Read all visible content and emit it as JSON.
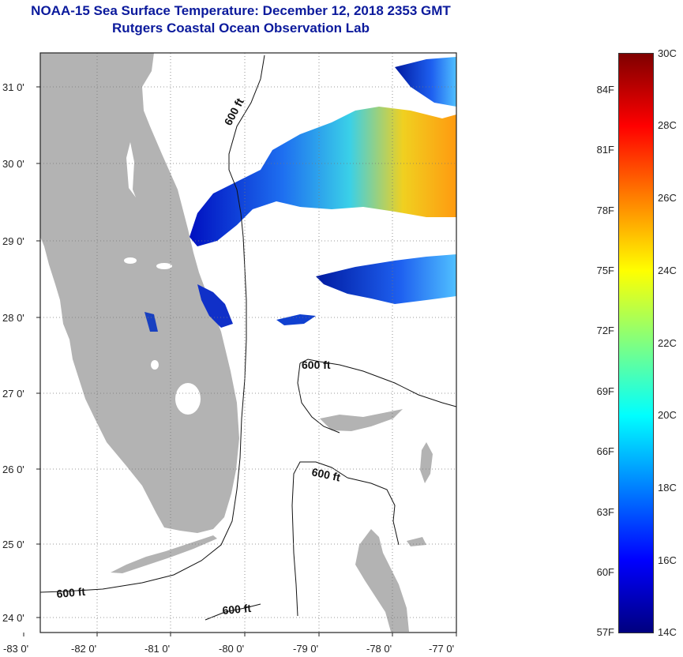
{
  "title": {
    "line1": "NOAA-15 Sea Surface Temperature:  December 12, 2018 2353 GMT",
    "line2": "Rutgers Coastal Ocean Observation Lab"
  },
  "map": {
    "lat_ticks": [
      "31 0'",
      "30 0'",
      "29 0'",
      "28 0'",
      "27 0'",
      "26 0'",
      "25 0'",
      "24 0'"
    ],
    "lon_ticks": [
      "-83 0'",
      "-82 0'",
      "-81 0'",
      "-80 0'",
      "-79 0'",
      "-78 0'",
      "-77 0'"
    ],
    "contour_label": "600 ft",
    "land_color": "#b3b3b3",
    "grid": true
  },
  "colorbar": {
    "fahrenheit_labels": [
      "84F",
      "81F",
      "78F",
      "75F",
      "72F",
      "69F",
      "66F",
      "63F",
      "60F",
      "57F"
    ],
    "celsius_labels": [
      "30C",
      "28C",
      "26C",
      "24C",
      "22C",
      "20C",
      "18C",
      "16C",
      "14C"
    ],
    "colors": [
      "#00007f",
      "#0000ff",
      "#0080ff",
      "#00ffff",
      "#80ff80",
      "#ffff00",
      "#ff8000",
      "#ff0000",
      "#7f0000"
    ]
  }
}
